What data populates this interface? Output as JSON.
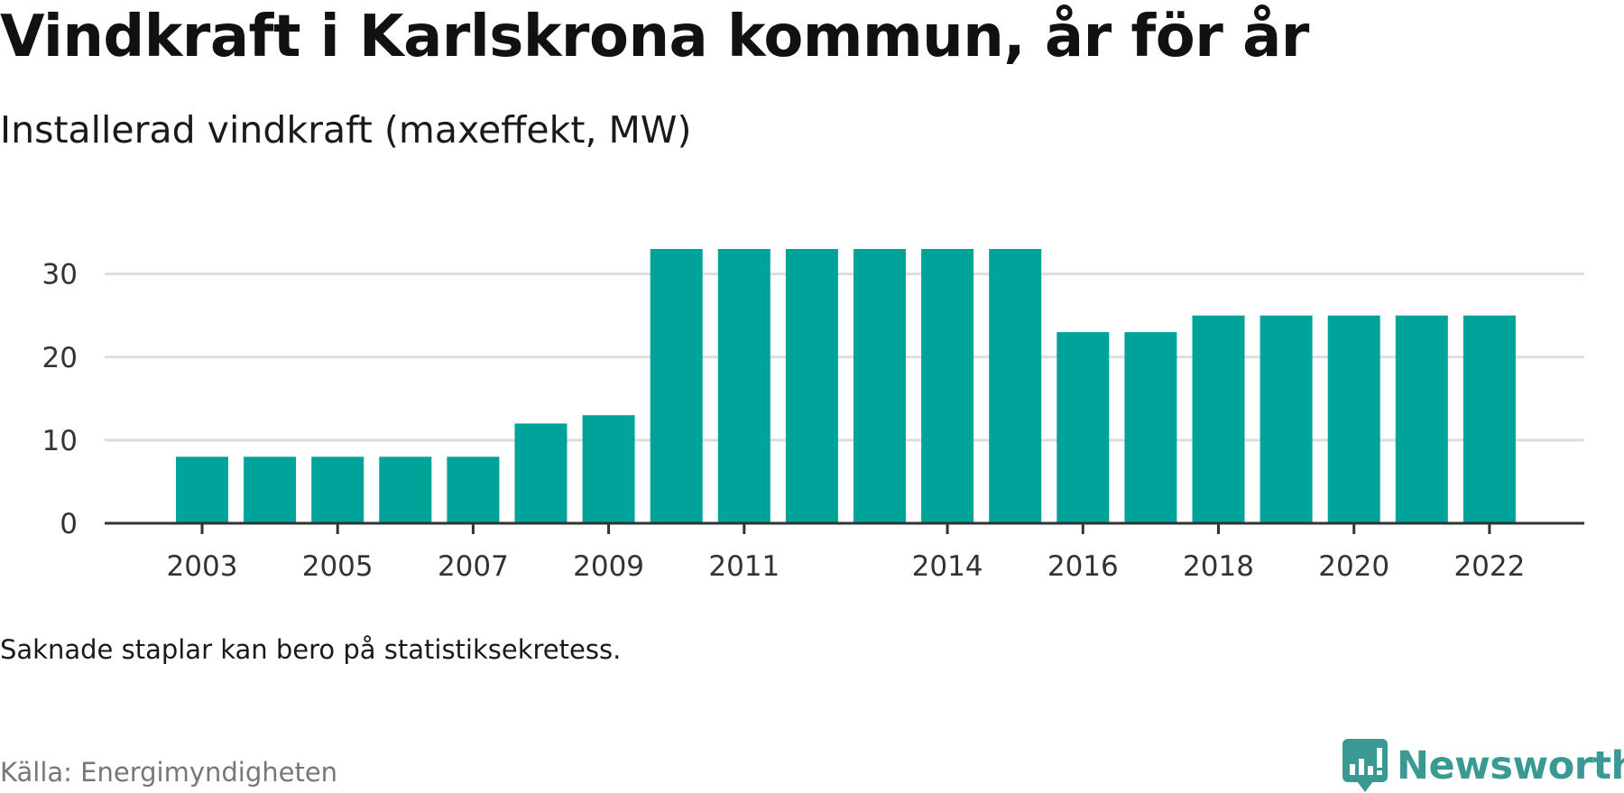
{
  "header": {
    "title": "Vindkraft i Karlskrona kommun, år för år",
    "subtitle": "Installerad vindkraft (maxeffekt, MW)"
  },
  "footer": {
    "note": "Saknade staplar kan bero på statistiksekretess.",
    "source": "Källa: Energimyndigheten",
    "logo_text": "Newsworthy",
    "logo_icon": "newsworthy-chart-bubble-icon"
  },
  "colors": {
    "bar": "#00a39a",
    "grid": "#dddddd",
    "axis": "#333333",
    "logo": "#3a9a93"
  },
  "chart_data": {
    "type": "bar",
    "title": "Vindkraft i Karlskrona kommun, år för år",
    "subtitle": "Installerad vindkraft (maxeffekt, MW)",
    "categories": [
      2003,
      2004,
      2005,
      2006,
      2007,
      2008,
      2009,
      2010,
      2011,
      2012,
      2013,
      2014,
      2015,
      2016,
      2017,
      2018,
      2019,
      2020,
      2021,
      2022
    ],
    "values": [
      8,
      8,
      8,
      8,
      8,
      12,
      13,
      33,
      33,
      33,
      33,
      33,
      33,
      23,
      23,
      25,
      25,
      25,
      25,
      25
    ],
    "x_tick_labels": [
      "2003",
      "2005",
      "2007",
      "2009",
      "2011",
      "2014",
      "2016",
      "2018",
      "2020",
      "2022"
    ],
    "y_ticks": [
      0,
      10,
      20,
      30
    ],
    "ylim": [
      0,
      33
    ],
    "grid": true,
    "legend": false
  }
}
